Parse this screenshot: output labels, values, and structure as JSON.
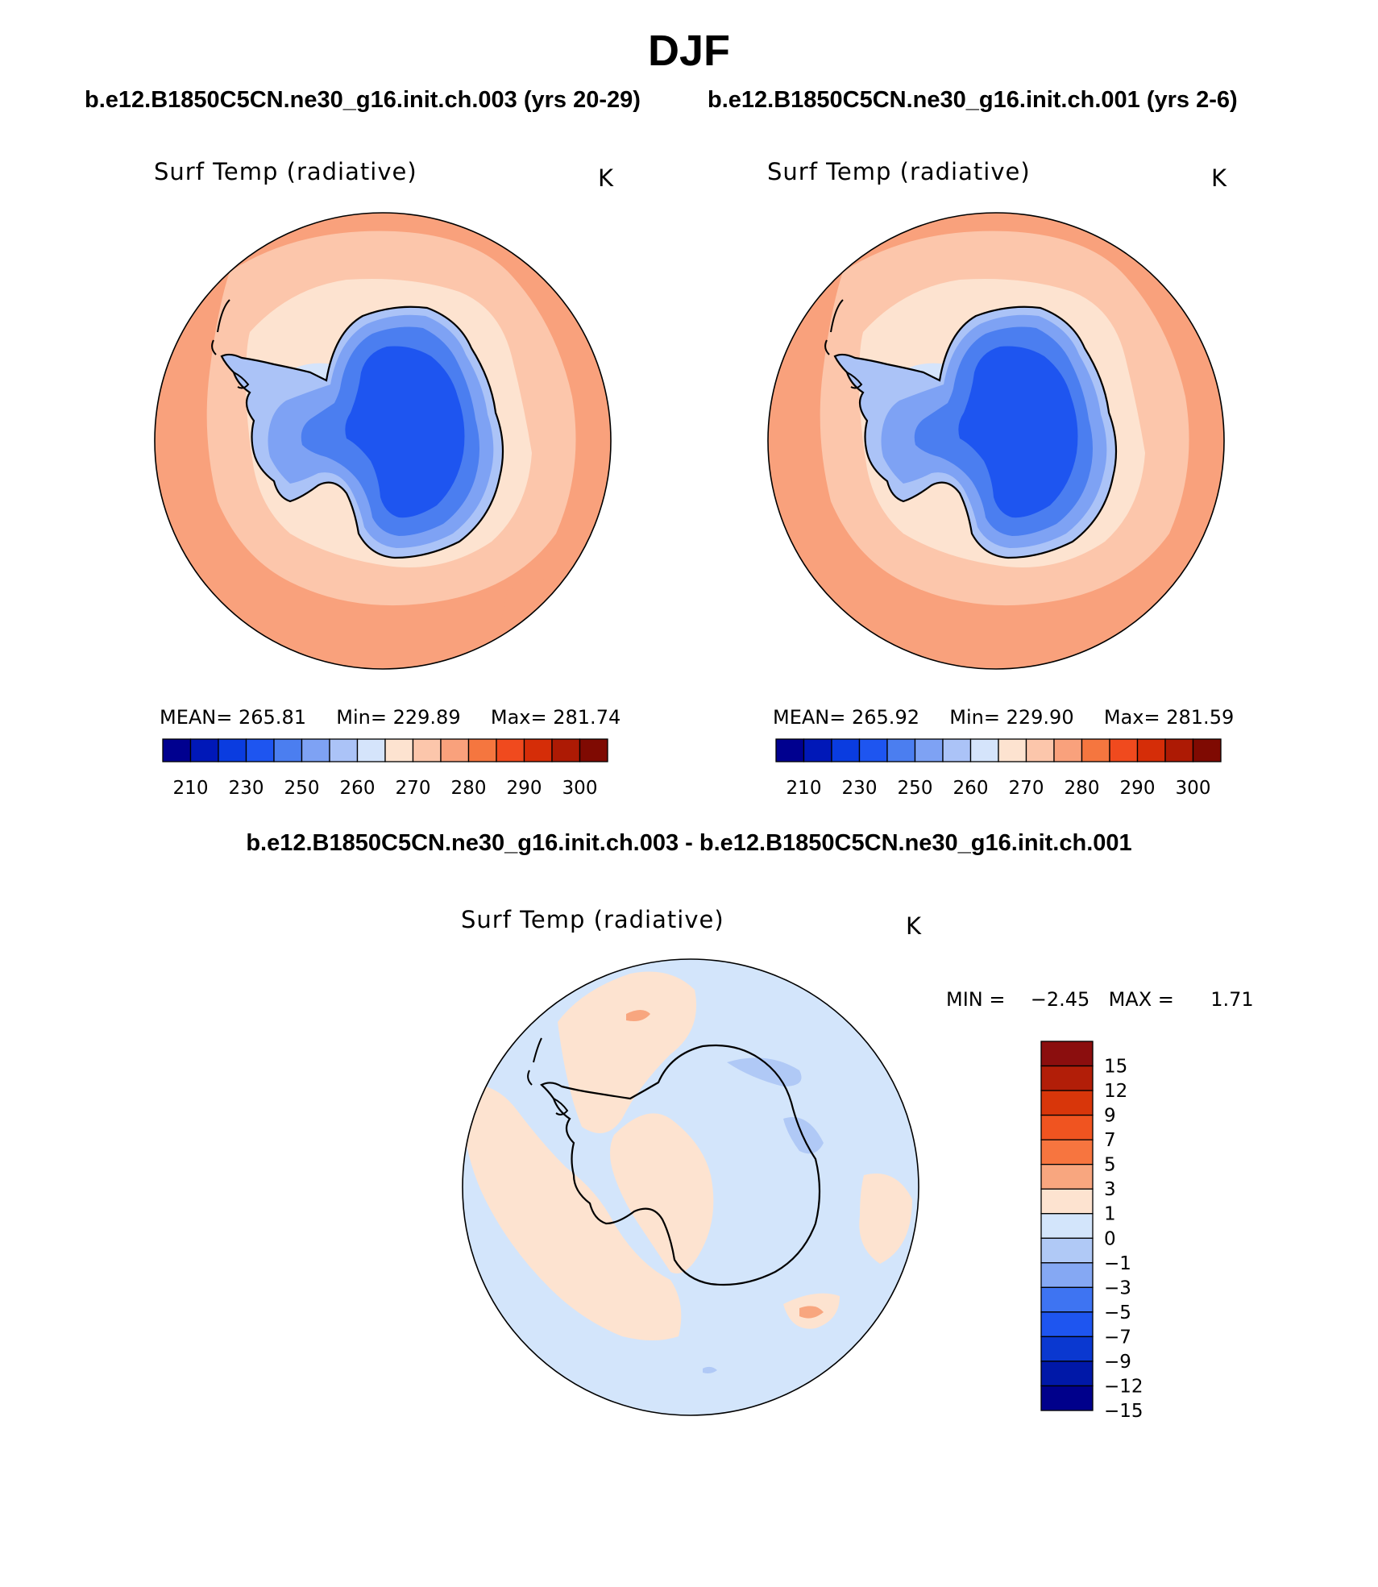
{
  "figure": {
    "title": "DJF",
    "case1_title": "b.e12.B1850C5CN.ne30_g16.init.ch.003 (yrs 20-29)",
    "case2_title": "b.e12.B1850C5CN.ne30_g16.init.ch.001 (yrs 2-6)",
    "diff_title": "b.e12.B1850C5CN.ne30_g16.init.ch.003 - b.e12.B1850C5CN.ne30_g16.init.ch.001"
  },
  "panels": {
    "top_left": {
      "variable": "Surf Temp (radiative)",
      "units": "K",
      "mean_label": "MEAN=",
      "mean": "265.81",
      "min_label": "Min=",
      "min": "229.89",
      "max_label": "Max=",
      "max": "281.74"
    },
    "top_right": {
      "variable": "Surf Temp (radiative)",
      "units": "K",
      "mean_label": "MEAN=",
      "mean": "265.92",
      "min_label": "Min=",
      "min": "229.90",
      "max_label": "Max=",
      "max": "281.59"
    },
    "diff": {
      "variable": "Surf Temp (radiative)",
      "units": "K",
      "min_label": "MIN =",
      "min": "−2.45",
      "max_label": "MAX =",
      "max": "1.71"
    }
  },
  "colorbars": {
    "abs": {
      "colors": [
        "#00008f",
        "#0018b8",
        "#0a3ce0",
        "#1e55f0",
        "#4b7ef0",
        "#7ea2f4",
        "#abc3f7",
        "#d5e4fb",
        "#fde3d0",
        "#fcc6ab",
        "#f9a17c",
        "#f5763f",
        "#f04a1e",
        "#d52d08",
        "#ad1a04",
        "#7f0a02"
      ],
      "labels": [
        "210",
        "230",
        "250",
        "260",
        "270",
        "280",
        "290",
        "300"
      ]
    },
    "diff": {
      "colors_top_to_bottom": [
        "#8b0e0e",
        "#b21e08",
        "#d8360a",
        "#f05420",
        "#f7753f",
        "#f8a67f",
        "#fde3d0",
        "#d3e5fb",
        "#b0c9f6",
        "#85a8f3",
        "#3e74f2",
        "#1e55f0",
        "#0a38d0",
        "#0018a8",
        "#00008b"
      ],
      "labels_top_to_bottom": [
        "15",
        "12",
        "9",
        "7",
        "5",
        "3",
        "1",
        "0",
        "−1",
        "−3",
        "−5",
        "−7",
        "−9",
        "−12",
        "−15"
      ]
    }
  }
}
